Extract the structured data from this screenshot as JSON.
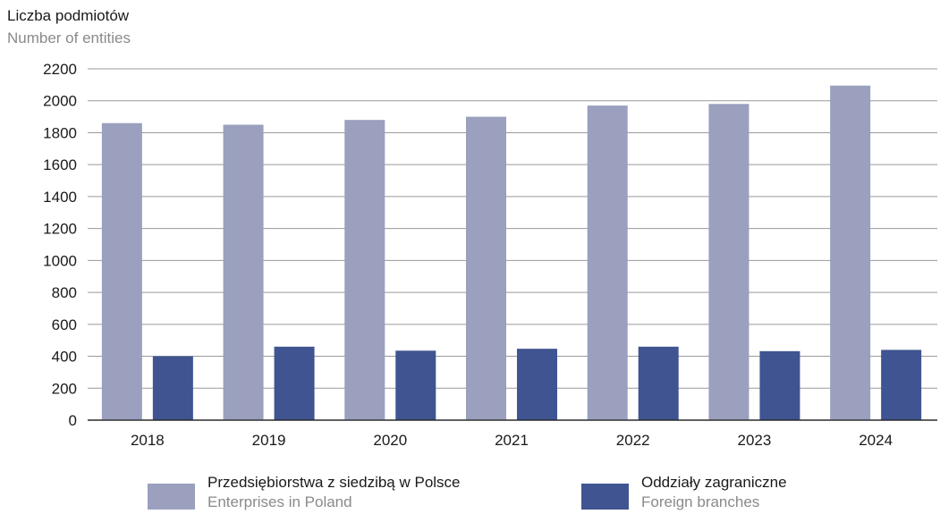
{
  "chart_data": {
    "type": "bar",
    "ylabel": "Liczba podmiotów",
    "ylabel_en": "Number of entities",
    "ylim": [
      0,
      2200
    ],
    "yticks": [
      0,
      200,
      400,
      600,
      800,
      1000,
      1200,
      1400,
      1600,
      1800,
      2000,
      2200
    ],
    "grid": true,
    "legend_position": "bottom",
    "categories": [
      "2018",
      "2019",
      "2020",
      "2021",
      "2022",
      "2023",
      "2024"
    ],
    "series": [
      {
        "name": "Przedsiębiorstwa z siedzibą w Polsce",
        "name_en": "Enterprises in Poland",
        "color": "#9aa0bd",
        "values": [
          1860,
          1850,
          1880,
          1900,
          1970,
          1980,
          2095
        ]
      },
      {
        "name": "Oddziały zagraniczne",
        "name_en": "Foreign branches",
        "color": "#3f5490",
        "values": [
          400,
          460,
          435,
          447,
          460,
          432,
          440
        ]
      }
    ]
  }
}
